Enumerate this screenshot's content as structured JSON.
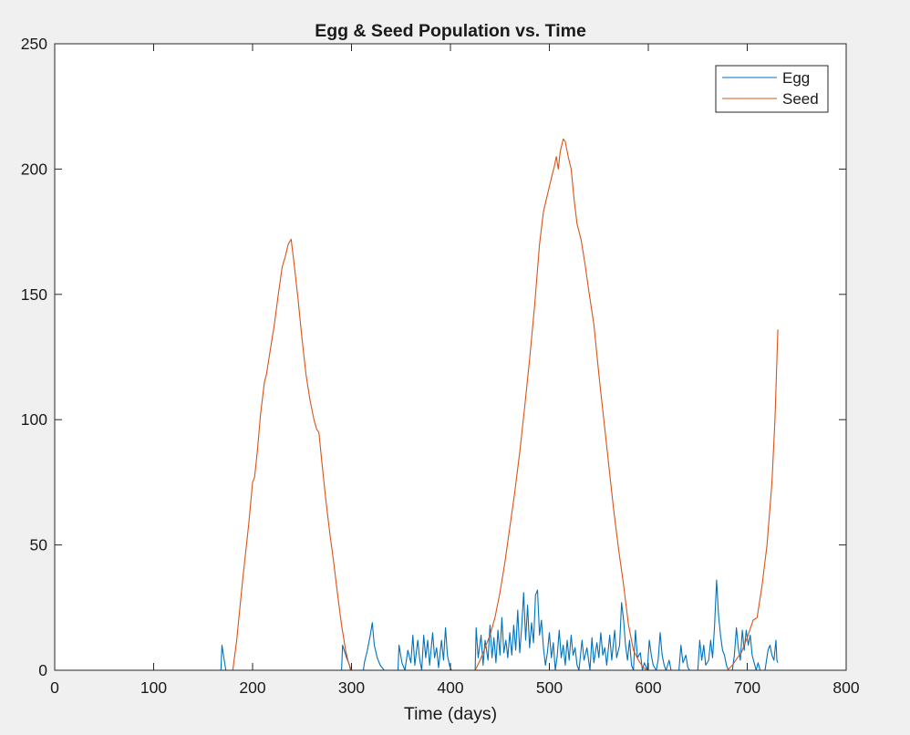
{
  "chart_data": {
    "type": "line",
    "title": "Egg & Seed Population vs. Time",
    "xlabel": "Time (days)",
    "ylabel": "",
    "xlim": [
      0,
      800
    ],
    "ylim": [
      0,
      250
    ],
    "xticks": [
      0,
      100,
      200,
      300,
      400,
      500,
      600,
      700,
      800
    ],
    "xtick_labels": [
      "0",
      "100",
      "200",
      "300",
      "400",
      "500",
      "600",
      "700",
      "800"
    ],
    "yticks": [
      0,
      50,
      100,
      150,
      200,
      250
    ],
    "ytick_labels": [
      "0",
      "50",
      "100",
      "150",
      "200",
      "250"
    ],
    "grid": false,
    "legend_position": "top-right",
    "series": [
      {
        "name": "Egg",
        "color": "#0072BD",
        "points": [
          [
            0,
            0
          ],
          [
            168,
            0
          ],
          [
            169,
            10
          ],
          [
            171,
            5
          ],
          [
            173,
            0
          ],
          [
            290,
            0
          ],
          [
            291,
            10
          ],
          [
            295,
            5
          ],
          [
            298,
            2
          ],
          [
            299,
            0
          ],
          [
            312,
            0
          ],
          [
            313,
            3
          ],
          [
            316,
            8
          ],
          [
            319,
            14
          ],
          [
            321,
            19
          ],
          [
            323,
            10
          ],
          [
            326,
            5
          ],
          [
            329,
            2
          ],
          [
            333,
            0
          ],
          [
            347,
            0
          ],
          [
            348,
            10
          ],
          [
            351,
            3
          ],
          [
            354,
            0
          ],
          [
            357,
            8
          ],
          [
            360,
            3
          ],
          [
            362,
            14
          ],
          [
            364,
            2
          ],
          [
            367,
            12
          ],
          [
            369,
            4
          ],
          [
            371,
            0
          ],
          [
            373,
            14
          ],
          [
            375,
            5
          ],
          [
            377,
            12
          ],
          [
            379,
            2
          ],
          [
            382,
            15
          ],
          [
            384,
            5
          ],
          [
            386,
            9
          ],
          [
            388,
            1
          ],
          [
            391,
            12
          ],
          [
            393,
            4
          ],
          [
            395,
            17
          ],
          [
            397,
            6
          ],
          [
            399,
            2
          ],
          [
            401,
            0
          ],
          [
            425,
            0
          ],
          [
            426,
            17
          ],
          [
            428,
            5
          ],
          [
            431,
            14
          ],
          [
            433,
            2
          ],
          [
            435,
            12
          ],
          [
            438,
            4
          ],
          [
            440,
            18
          ],
          [
            442,
            5
          ],
          [
            444,
            13
          ],
          [
            446,
            3
          ],
          [
            448,
            16
          ],
          [
            450,
            6
          ],
          [
            452,
            21
          ],
          [
            454,
            7
          ],
          [
            456,
            12
          ],
          [
            458,
            5
          ],
          [
            460,
            15
          ],
          [
            462,
            6
          ],
          [
            464,
            18
          ],
          [
            466,
            8
          ],
          [
            468,
            24
          ],
          [
            470,
            7
          ],
          [
            472,
            17
          ],
          [
            474,
            31
          ],
          [
            476,
            12
          ],
          [
            478,
            26
          ],
          [
            480,
            9
          ],
          [
            482,
            19
          ],
          [
            484,
            11
          ],
          [
            486,
            30
          ],
          [
            488,
            32
          ],
          [
            490,
            14
          ],
          [
            492,
            20
          ],
          [
            494,
            9
          ],
          [
            496,
            2
          ],
          [
            498,
            7
          ],
          [
            500,
            15
          ],
          [
            502,
            5
          ],
          [
            504,
            11
          ],
          [
            506,
            0
          ],
          [
            508,
            6
          ],
          [
            510,
            16
          ],
          [
            512,
            5
          ],
          [
            514,
            10
          ],
          [
            516,
            2
          ],
          [
            518,
            12
          ],
          [
            520,
            4
          ],
          [
            522,
            14
          ],
          [
            524,
            6
          ],
          [
            526,
            9
          ],
          [
            528,
            2
          ],
          [
            530,
            0
          ],
          [
            533,
            12
          ],
          [
            535,
            4
          ],
          [
            538,
            9
          ],
          [
            541,
            0
          ],
          [
            543,
            13
          ],
          [
            545,
            3
          ],
          [
            548,
            11
          ],
          [
            550,
            5
          ],
          [
            552,
            15
          ],
          [
            554,
            6
          ],
          [
            556,
            9
          ],
          [
            558,
            2
          ],
          [
            561,
            14
          ],
          [
            563,
            4
          ],
          [
            566,
            16
          ],
          [
            568,
            5
          ],
          [
            571,
            10
          ],
          [
            573,
            27
          ],
          [
            575,
            20
          ],
          [
            577,
            10
          ],
          [
            579,
            4
          ],
          [
            581,
            12
          ],
          [
            583,
            2
          ],
          [
            585,
            0
          ],
          [
            587,
            16
          ],
          [
            589,
            5
          ],
          [
            592,
            7
          ],
          [
            594,
            0
          ],
          [
            596,
            3
          ],
          [
            599,
            0
          ],
          [
            601,
            12
          ],
          [
            603,
            6
          ],
          [
            605,
            2
          ],
          [
            608,
            0
          ],
          [
            610,
            4
          ],
          [
            612,
            15
          ],
          [
            614,
            6
          ],
          [
            616,
            2
          ],
          [
            618,
            0
          ],
          [
            621,
            4
          ],
          [
            623,
            0
          ],
          [
            631,
            0
          ],
          [
            633,
            10
          ],
          [
            635,
            3
          ],
          [
            638,
            6
          ],
          [
            640,
            1
          ],
          [
            642,
            0
          ],
          [
            650,
            0
          ],
          [
            652,
            12
          ],
          [
            654,
            4
          ],
          [
            656,
            10
          ],
          [
            658,
            2
          ],
          [
            661,
            4
          ],
          [
            663,
            12
          ],
          [
            665,
            5
          ],
          [
            667,
            18
          ],
          [
            669,
            36
          ],
          [
            671,
            22
          ],
          [
            673,
            14
          ],
          [
            675,
            8
          ],
          [
            677,
            6
          ],
          [
            679,
            2
          ],
          [
            681,
            0
          ],
          [
            685,
            0
          ],
          [
            687,
            6
          ],
          [
            689,
            17
          ],
          [
            691,
            9
          ],
          [
            693,
            4
          ],
          [
            695,
            16
          ],
          [
            697,
            8
          ],
          [
            699,
            16
          ],
          [
            701,
            10
          ],
          [
            703,
            14
          ],
          [
            705,
            6
          ],
          [
            707,
            3
          ],
          [
            709,
            0
          ],
          [
            711,
            3
          ],
          [
            713,
            0
          ],
          [
            718,
            0
          ],
          [
            721,
            8
          ],
          [
            723,
            10
          ],
          [
            725,
            6
          ],
          [
            727,
            4
          ],
          [
            729,
            12
          ],
          [
            730,
            4
          ],
          [
            731,
            3
          ]
        ]
      },
      {
        "name": "Seed",
        "color": "#D95319",
        "points": [
          [
            0,
            0
          ],
          [
            180,
            0
          ],
          [
            184,
            12
          ],
          [
            190,
            36
          ],
          [
            196,
            58
          ],
          [
            200,
            75
          ],
          [
            202,
            77
          ],
          [
            205,
            88
          ],
          [
            208,
            102
          ],
          [
            212,
            115
          ],
          [
            214,
            118
          ],
          [
            218,
            128
          ],
          [
            222,
            138
          ],
          [
            226,
            150
          ],
          [
            230,
            161
          ],
          [
            233,
            165
          ],
          [
            236,
            170
          ],
          [
            239,
            172
          ],
          [
            242,
            162
          ],
          [
            246,
            148
          ],
          [
            250,
            132
          ],
          [
            254,
            118
          ],
          [
            258,
            108
          ],
          [
            262,
            100
          ],
          [
            265,
            96
          ],
          [
            267,
            95
          ],
          [
            270,
            83
          ],
          [
            274,
            68
          ],
          [
            278,
            55
          ],
          [
            282,
            43
          ],
          [
            286,
            30
          ],
          [
            290,
            18
          ],
          [
            294,
            8
          ],
          [
            297,
            3
          ],
          [
            300,
            0
          ],
          [
            425,
            0
          ],
          [
            430,
            4
          ],
          [
            435,
            9
          ],
          [
            440,
            14
          ],
          [
            445,
            21
          ],
          [
            450,
            31
          ],
          [
            455,
            43
          ],
          [
            460,
            57
          ],
          [
            465,
            71
          ],
          [
            470,
            87
          ],
          [
            475,
            105
          ],
          [
            480,
            124
          ],
          [
            485,
            145
          ],
          [
            490,
            170
          ],
          [
            494,
            183
          ],
          [
            497,
            188
          ],
          [
            500,
            193
          ],
          [
            503,
            198
          ],
          [
            505,
            201
          ],
          [
            507,
            205
          ],
          [
            509,
            200
          ],
          [
            511,
            207
          ],
          [
            514,
            212
          ],
          [
            516,
            211
          ],
          [
            519,
            205
          ],
          [
            522,
            200
          ],
          [
            525,
            188
          ],
          [
            528,
            178
          ],
          [
            532,
            172
          ],
          [
            536,
            162
          ],
          [
            540,
            151
          ],
          [
            545,
            138
          ],
          [
            550,
            118
          ],
          [
            555,
            100
          ],
          [
            560,
            82
          ],
          [
            565,
            64
          ],
          [
            570,
            48
          ],
          [
            575,
            34
          ],
          [
            580,
            18
          ],
          [
            585,
            8
          ],
          [
            590,
            4
          ],
          [
            595,
            1
          ],
          [
            600,
            0
          ],
          [
            680,
            0
          ],
          [
            685,
            2
          ],
          [
            690,
            5
          ],
          [
            694,
            7
          ],
          [
            700,
            13
          ],
          [
            706,
            20
          ],
          [
            710,
            21
          ],
          [
            715,
            34
          ],
          [
            720,
            50
          ],
          [
            725,
            75
          ],
          [
            728,
            100
          ],
          [
            731,
            136
          ]
        ]
      }
    ]
  }
}
